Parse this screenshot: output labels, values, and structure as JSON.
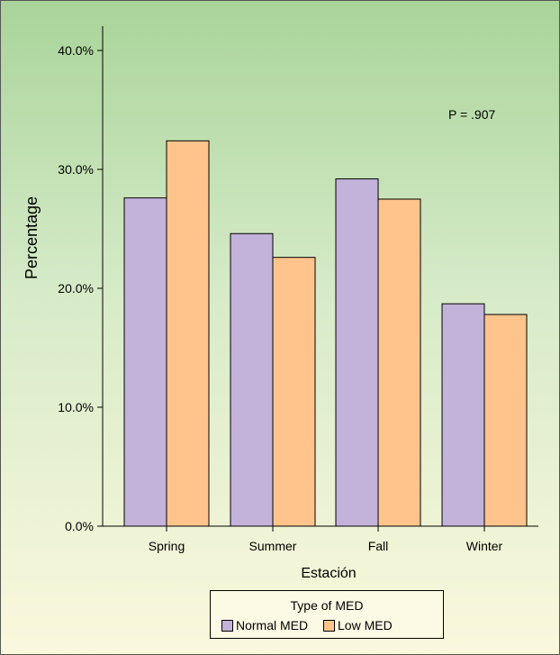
{
  "chart_data": {
    "type": "bar",
    "categories": [
      "Spring",
      "Summer",
      "Fall",
      "Winter"
    ],
    "series": [
      {
        "name": "Normal MED",
        "values": [
          27.6,
          24.6,
          29.2,
          18.7
        ],
        "color": "#c3b2d9"
      },
      {
        "name": "Low MED",
        "values": [
          32.4,
          22.6,
          27.5,
          17.8
        ],
        "color": "#fec48c"
      }
    ],
    "title": "",
    "xlabel": "Estación",
    "ylabel": "Percentage",
    "ylim": [
      0,
      40
    ],
    "yticks": [
      0,
      10,
      20,
      30,
      40
    ],
    "ytick_labels": [
      "0.0%",
      "10.0%",
      "20.0%",
      "30.0%",
      "40.0%"
    ],
    "annotation": "P = .907",
    "legend": {
      "title": "Type of MED",
      "placement": "bottom-center",
      "entries": [
        "Normal MED",
        "Low MED"
      ]
    },
    "grid": false,
    "background_colors": [
      "#a9d49a",
      "#fbf8dc"
    ]
  }
}
